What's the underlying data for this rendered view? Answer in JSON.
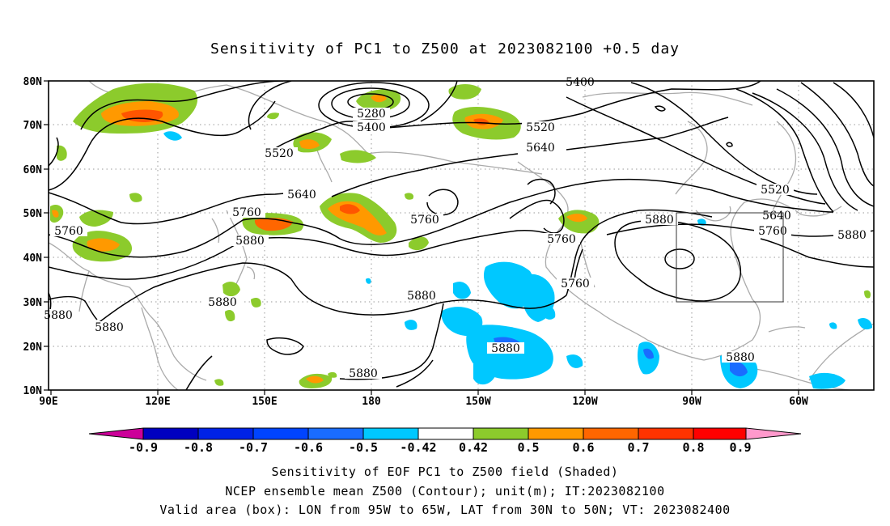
{
  "title": "Sensitivity of PC1 to Z500 at 2023082100 +0.5 day",
  "axes": {
    "lat_ticks": [
      "10N",
      "20N",
      "30N",
      "40N",
      "50N",
      "60N",
      "70N",
      "80N"
    ],
    "lon_ticks": [
      "90E",
      "120E",
      "150E",
      "180",
      "150W",
      "120W",
      "90W",
      "60W"
    ]
  },
  "contour_labels": [
    "5280",
    "5400",
    "5400",
    "5520",
    "5520",
    "5520",
    "5640",
    "5640",
    "5640",
    "5760",
    "5760",
    "5760",
    "5760",
    "5760",
    "5760",
    "5880",
    "5880",
    "5880",
    "5880",
    "5880",
    "5880",
    "5880",
    "5880",
    "5880",
    "5880"
  ],
  "colorbar": {
    "labels": [
      "-0.9",
      "-0.8",
      "-0.7",
      "-0.6",
      "-0.5",
      "-0.42",
      "0.42",
      "0.5",
      "0.6",
      "0.7",
      "0.8",
      "0.9"
    ],
    "colors": [
      "#0000c0",
      "#0022e6",
      "#0044ff",
      "#1a6cff",
      "#00c8ff",
      "#ffffff",
      "#8ccb2c",
      "#ff9900",
      "#ff6600",
      "#ff3300",
      "#ff0000"
    ],
    "left_arrow_color": "#cc0099",
    "right_arrow_color": "#ff99cc"
  },
  "box": {
    "lon_min": "95W",
    "lon_max": "65W",
    "lat_min": "30N",
    "lat_max": "50N"
  },
  "notes": {
    "line1": "Sensitivity of EOF PC1 to Z500 field (Shaded)",
    "line2": "NCEP ensemble mean Z500 (Contour); unit(m); IT:2023082100",
    "line3": "Valid area (box): LON from 95W to 65W, LAT from 30N to 50N; VT: 2023082400"
  }
}
